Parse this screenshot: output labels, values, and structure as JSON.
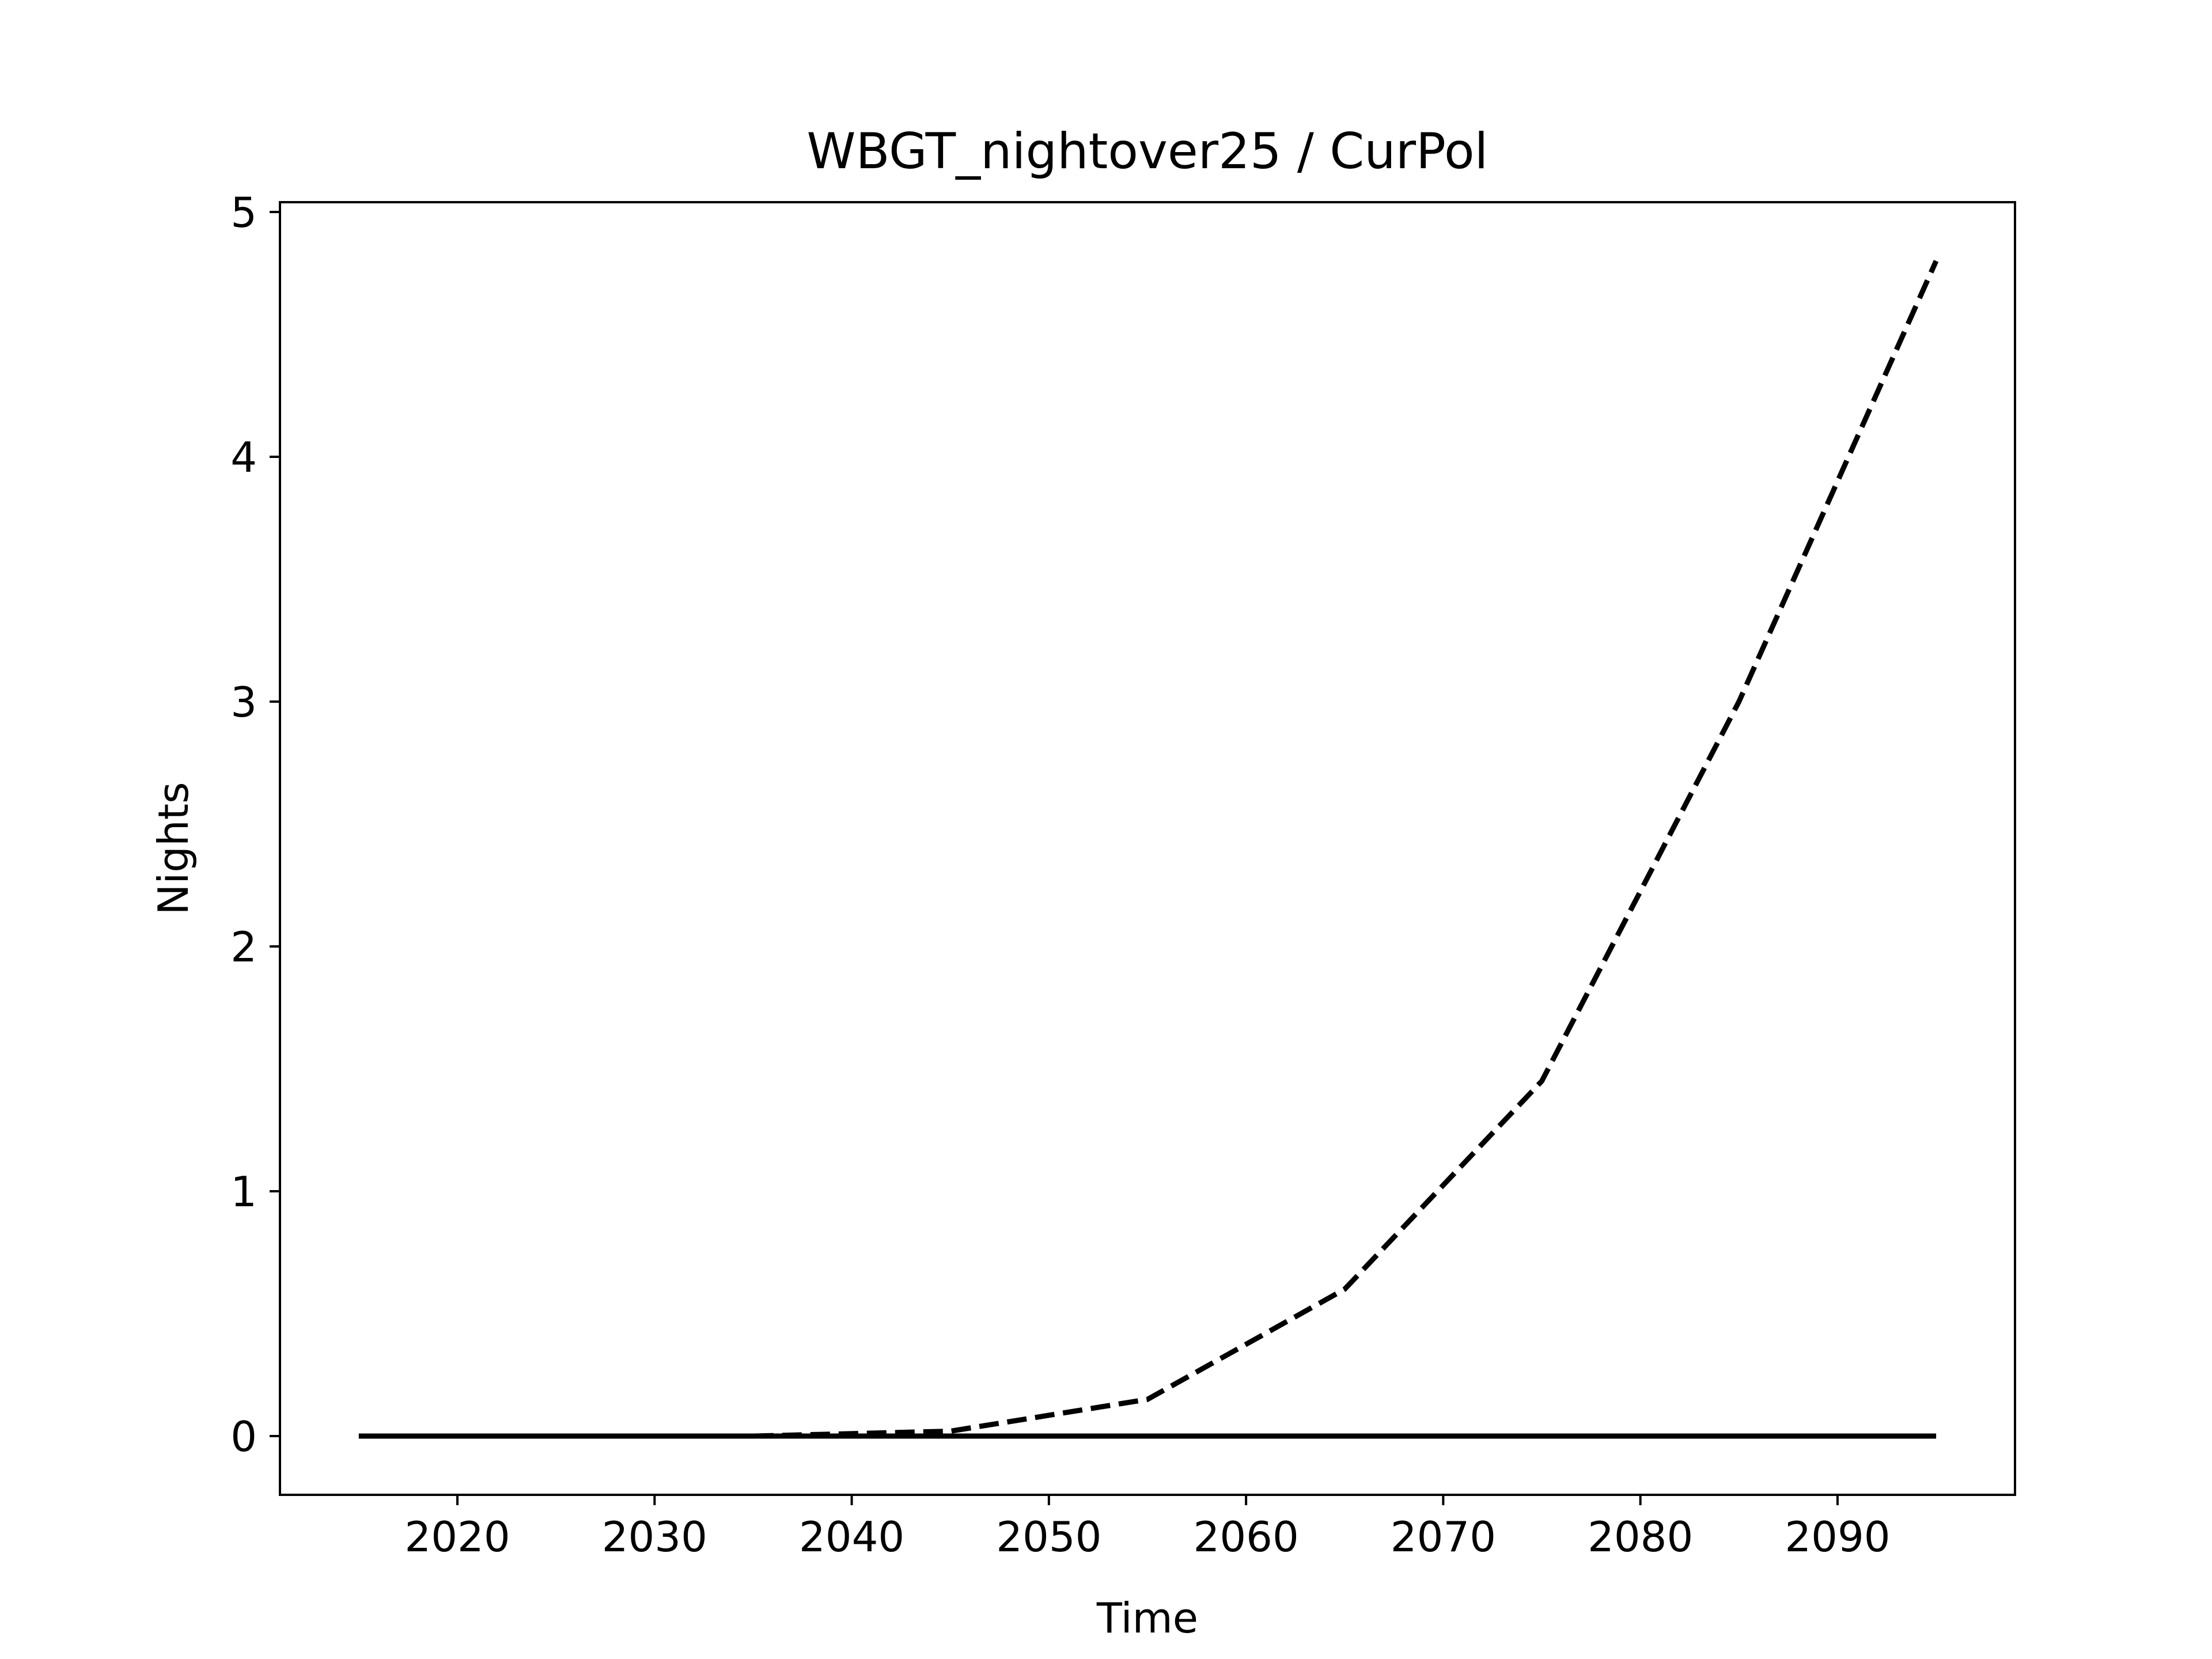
{
  "chart_data": {
    "type": "line",
    "title": "WBGT_nightover25 / CurPol",
    "xlabel": "Time",
    "ylabel": "Nights",
    "xlim": [
      2011,
      2099
    ],
    "ylim": [
      -0.24,
      5.04
    ],
    "xticks": [
      2020,
      2030,
      2040,
      2050,
      2060,
      2070,
      2080,
      2090
    ],
    "yticks": [
      0,
      1,
      2,
      3,
      4,
      5
    ],
    "grid": false,
    "x": [
      2015,
      2025,
      2035,
      2045,
      2055,
      2065,
      2075,
      2085,
      2095
    ],
    "series": [
      {
        "style": "dashed",
        "color": "#000000",
        "values": [
          0,
          0,
          0,
          0.02,
          0.15,
          0.6,
          1.45,
          3.0,
          4.8
        ]
      },
      {
        "style": "solid",
        "color": "#000000",
        "values": [
          0,
          0,
          0,
          0,
          0,
          0,
          0,
          0,
          0
        ]
      }
    ]
  }
}
